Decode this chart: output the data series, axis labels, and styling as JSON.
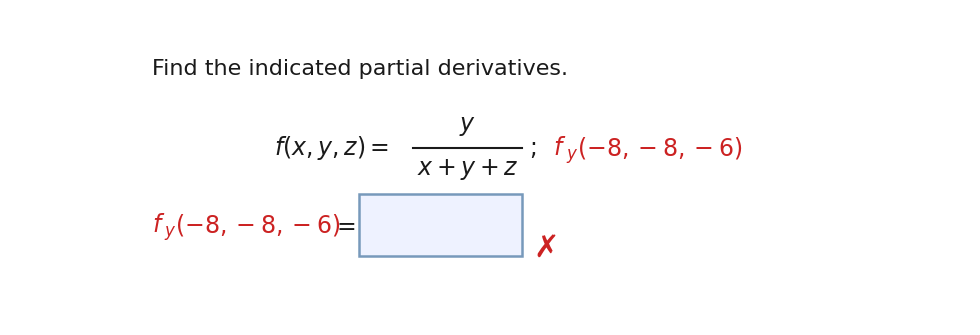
{
  "bg_color": "#ffffff",
  "red_color": "#cc2222",
  "black_color": "#1a1a1a",
  "title_text": "Find the indicated partial derivatives.",
  "title_fontsize": 16,
  "box_edge_color": "#7799bb",
  "box_face_color": "#eef2ff"
}
